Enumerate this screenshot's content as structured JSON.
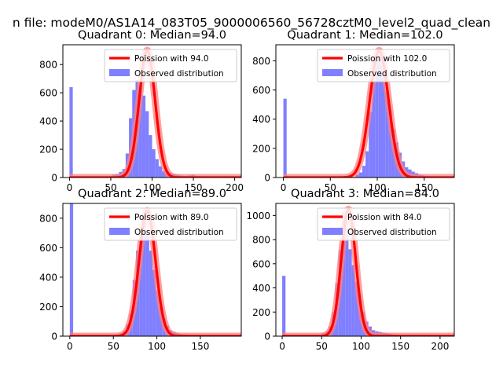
{
  "figure_title": "n file: modeM0/AS1A14_083T05_9000006560_56728cztM0_level2_quad_clean",
  "colors": {
    "hist": "#7f7fff",
    "fit": "#ff0000",
    "fit_halo": "#ff8080",
    "axis": "#000000"
  },
  "chart_data": [
    {
      "type": "bar",
      "title": "Quadrant 0: Median=94.0",
      "median": 94.0,
      "xlim": [
        -8,
        208
      ],
      "ylim": [
        0,
        940
      ],
      "xticks": [
        0,
        50,
        100,
        150,
        200
      ],
      "yticks": [
        0,
        200,
        400,
        600,
        800
      ],
      "legend": {
        "placement": "upper-right",
        "fit_label": "Poission with 94.0",
        "hist_label": "Observed distribution"
      },
      "hist": {
        "bin_width": 4,
        "edges_start": 0,
        "counts": [
          640,
          0,
          0,
          0,
          0,
          0,
          0,
          0,
          0,
          0,
          0,
          0,
          0,
          20,
          25,
          40,
          60,
          170,
          420,
          620,
          690,
          650,
          580,
          470,
          300,
          200,
          130,
          80,
          45,
          35,
          30,
          25,
          20,
          15,
          12,
          10,
          15,
          18,
          10,
          8,
          6,
          5,
          4,
          3,
          2,
          1,
          1,
          0,
          0,
          0
        ]
      },
      "fit": {
        "mean": 94.0,
        "sigma": 9.7,
        "peak": 900
      }
    },
    {
      "type": "bar",
      "title": "Quadrant 1: Median=102.0",
      "median": 102.0,
      "xlim": [
        -8,
        182
      ],
      "ylim": [
        0,
        910
      ],
      "xticks": [
        0,
        50,
        100,
        150
      ],
      "yticks": [
        0,
        200,
        400,
        600,
        800
      ],
      "legend": {
        "placement": "upper-right",
        "fit_label": "Poission with 102.0",
        "hist_label": "Observed distribution"
      },
      "hist": {
        "bin_width": 3.5,
        "edges_start": 0,
        "counts": [
          540,
          0,
          0,
          0,
          0,
          0,
          0,
          0,
          0,
          0,
          0,
          0,
          0,
          0,
          0,
          0,
          0,
          0,
          0,
          0,
          0,
          0,
          20,
          35,
          80,
          180,
          450,
          660,
          830,
          800,
          690,
          590,
          460,
          330,
          240,
          170,
          110,
          70,
          55,
          40,
          30,
          20,
          15,
          10,
          8,
          6,
          4,
          3,
          2,
          1
        ]
      },
      "fit": {
        "mean": 102.0,
        "sigma": 10.1,
        "peak": 870
      }
    },
    {
      "type": "bar",
      "title": "Quadrant 2: Median=89.0",
      "median": 89.0,
      "xlim": [
        -8,
        197
      ],
      "ylim": [
        0,
        900
      ],
      "xticks": [
        0,
        50,
        100,
        150
      ],
      "yticks": [
        0,
        200,
        400,
        600,
        800
      ],
      "legend": {
        "placement": "upper-right",
        "fit_label": "Poission with 89.0",
        "hist_label": "Observed distribution"
      },
      "hist": {
        "bin_width": 3.8,
        "edges_start": 0,
        "counts": [
          900,
          0,
          0,
          0,
          0,
          0,
          0,
          0,
          0,
          0,
          0,
          0,
          0,
          0,
          0,
          20,
          35,
          80,
          150,
          380,
          580,
          690,
          800,
          700,
          580,
          450,
          310,
          200,
          120,
          70,
          40,
          30,
          22,
          15,
          12,
          8,
          6,
          4,
          3,
          2,
          1,
          1,
          0,
          0,
          0,
          0,
          0,
          0,
          0,
          0
        ]
      },
      "fit": {
        "mean": 89.0,
        "sigma": 9.4,
        "peak": 850
      }
    },
    {
      "type": "bar",
      "title": "Quadrant 3: Median=84.0",
      "median": 84.0,
      "xlim": [
        -8,
        218
      ],
      "ylim": [
        0,
        1100
      ],
      "xticks": [
        0,
        50,
        100,
        150,
        200
      ],
      "yticks": [
        0,
        200,
        400,
        600,
        800,
        1000
      ],
      "legend": {
        "placement": "upper-right",
        "fit_label": "Poission with 84.0",
        "hist_label": "Observed distribution"
      },
      "hist": {
        "bin_width": 4.2,
        "edges_start": 0,
        "counts": [
          500,
          0,
          0,
          0,
          0,
          0,
          0,
          0,
          0,
          0,
          0,
          0,
          25,
          40,
          80,
          200,
          440,
          710,
          1030,
          900,
          720,
          590,
          450,
          300,
          200,
          120,
          80,
          50,
          40,
          35,
          30,
          25,
          20,
          15,
          12,
          10,
          8,
          6,
          5,
          4,
          3,
          2,
          1,
          1,
          0,
          0,
          0,
          0,
          0,
          0
        ]
      },
      "fit": {
        "mean": 84.0,
        "sigma": 9.2,
        "peak": 1050
      }
    }
  ]
}
